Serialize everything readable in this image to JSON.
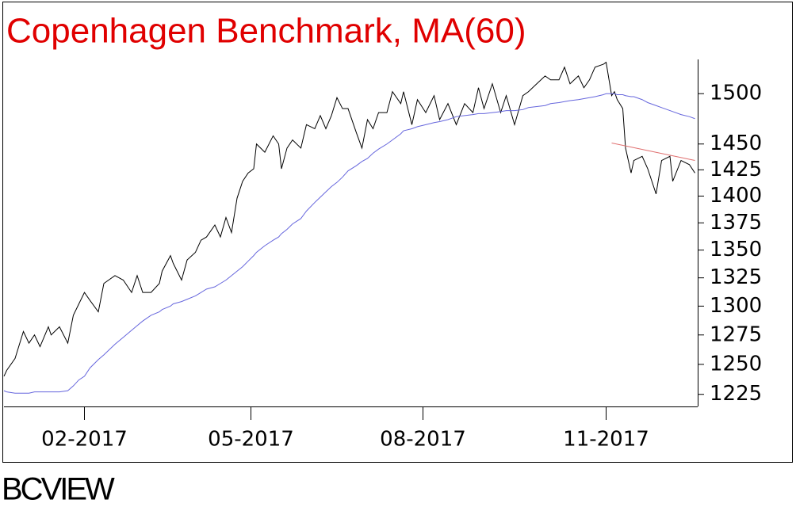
{
  "chart_data": {
    "type": "line",
    "title": "Copenhagen Benchmark, MA(60)",
    "log_scale": true,
    "x": [
      0,
      1,
      4,
      7,
      9,
      11,
      13,
      16,
      17,
      20,
      23,
      25,
      27,
      29,
      31,
      34,
      36,
      40,
      43,
      46,
      48,
      50,
      53,
      56,
      57,
      60,
      61,
      64,
      66,
      69,
      71,
      73,
      76,
      78,
      80,
      82,
      84,
      86,
      88,
      90,
      91,
      94,
      97,
      99,
      100,
      102,
      104,
      107,
      109,
      112,
      114,
      116,
      118,
      120,
      122,
      124,
      127,
      129,
      131,
      133,
      135,
      138,
      140,
      143,
      144,
      147,
      149,
      152,
      155,
      157,
      160,
      163,
      166,
      169,
      171,
      173,
      176,
      179,
      181,
      184,
      187,
      189,
      192,
      195,
      197,
      200,
      202,
      204,
      207,
      209,
      211,
      213,
      216,
      217,
      219,
      220,
      221,
      223,
      224,
      226,
      227,
      230,
      232,
      235,
      237,
      240,
      241,
      244,
      247,
      249
    ],
    "series": [
      {
        "color": "#000000",
        "values": [
          1240,
          1245,
          1255,
          1278,
          1268,
          1275,
          1265,
          1282,
          1275,
          1282,
          1268,
          1292,
          1302,
          1312,
          1305,
          1295,
          1320,
          1327,
          1323,
          1312,
          1327,
          1312,
          1312,
          1320,
          1331,
          1345,
          1338,
          1323,
          1341,
          1348,
          1359,
          1362,
          1373,
          1362,
          1380,
          1366,
          1398,
          1414,
          1422,
          1426,
          1450,
          1442,
          1458,
          1450,
          1426,
          1446,
          1454,
          1446,
          1469,
          1465,
          1478,
          1465,
          1478,
          1496,
          1485,
          1485,
          1461,
          1446,
          1474,
          1465,
          1481,
          1481,
          1502,
          1490,
          1502,
          1469,
          1494,
          1481,
          1498,
          1474,
          1490,
          1469,
          1490,
          1481,
          1506,
          1485,
          1510,
          1481,
          1498,
          1469,
          1498,
          1502,
          1510,
          1518,
          1514,
          1514,
          1527,
          1510,
          1518,
          1506,
          1514,
          1527,
          1530,
          1532,
          1498,
          1502,
          1494,
          1485,
          1446,
          1422,
          1434,
          1438,
          1426,
          1402,
          1434,
          1438,
          1414,
          1434,
          1430,
          1422
        ]
      },
      {
        "color": "#6666dd",
        "values": [
          1228,
          1227,
          1226,
          1226,
          1226,
          1227,
          1227,
          1227,
          1227,
          1227,
          1228,
          1232,
          1237,
          1240,
          1247,
          1254,
          1258,
          1267,
          1273,
          1279,
          1283,
          1287,
          1292,
          1295,
          1297,
          1300,
          1302,
          1304,
          1306,
          1309,
          1312,
          1315,
          1317,
          1320,
          1323,
          1327,
          1331,
          1335,
          1340,
          1345,
          1348,
          1354,
          1359,
          1362,
          1365,
          1369,
          1374,
          1379,
          1386,
          1394,
          1399,
          1404,
          1409,
          1413,
          1418,
          1424,
          1429,
          1433,
          1436,
          1441,
          1445,
          1450,
          1454,
          1460,
          1463,
          1465,
          1467,
          1469,
          1471,
          1472,
          1474,
          1477,
          1478,
          1479,
          1480,
          1480,
          1481,
          1482,
          1483,
          1483,
          1484,
          1486,
          1487,
          1488,
          1490,
          1491,
          1492,
          1493,
          1494,
          1495,
          1496,
          1497,
          1499,
          1500,
          1500,
          1500,
          1499,
          1499,
          1498,
          1497,
          1497,
          1494,
          1491,
          1488,
          1486,
          1483,
          1482,
          1479,
          1477,
          1475
        ]
      },
      {
        "color": "#e07070",
        "x": [
          219,
          249
        ],
        "values": [
          1451,
          1434
        ]
      }
    ],
    "xlim": [
      0,
      250
    ],
    "xticks": [
      {
        "value": 29,
        "label": "02-2017"
      },
      {
        "value": 89,
        "label": "05-2017"
      },
      {
        "value": 151,
        "label": "08-2017"
      },
      {
        "value": 217,
        "label": "11-2017"
      }
    ],
    "ylim": [
      1217,
      1535
    ],
    "yticks": [
      1225,
      1250,
      1275,
      1300,
      1325,
      1350,
      1375,
      1400,
      1425,
      1450,
      1500
    ]
  },
  "watermark": "BCVIEW"
}
